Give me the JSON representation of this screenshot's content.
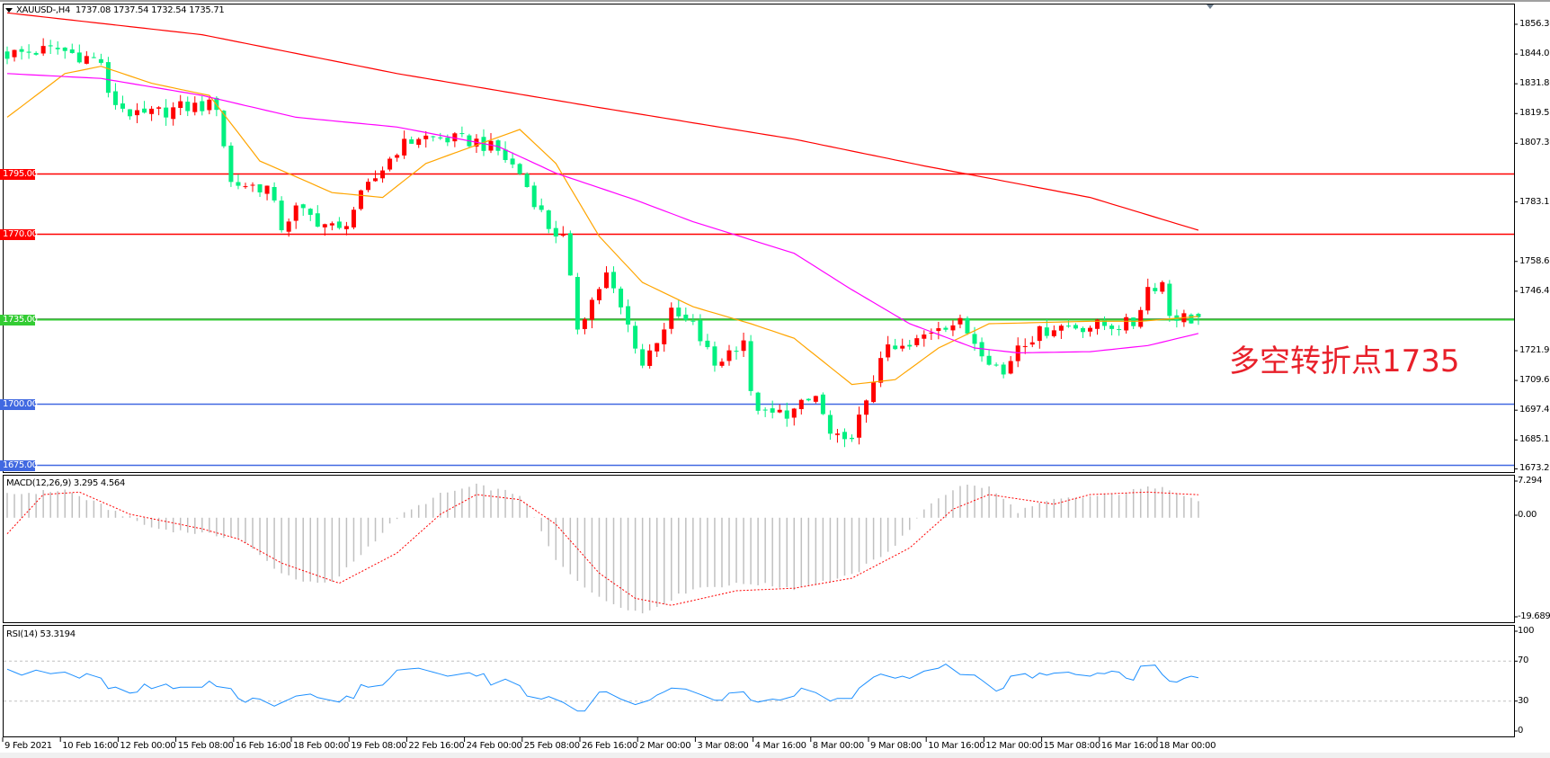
{
  "header": {
    "symbol": "XAUUSD-,H4",
    "ohlc": "1737.08 1737.54 1732.54 1735.71",
    "macd_label": "MACD(12,26,9) 3.295 4.564",
    "rsi_label": "RSI(14) 53.3194"
  },
  "annotation": "多空转折点1735",
  "chart_data": [
    {
      "type": "candlestick",
      "symbol": "XAUUSD-",
      "timeframe": "H4",
      "last_bar": {
        "open": 1737.08,
        "high": 1737.54,
        "low": 1732.54,
        "close": 1735.71
      },
      "bull_color": "#ff0000",
      "bear_color": "#00f080",
      "bar_count": 166,
      "close_path": [
        [
          0,
          1844
        ],
        [
          7,
          1846
        ],
        [
          13,
          1841
        ],
        [
          14,
          1826
        ],
        [
          18,
          1818
        ],
        [
          24,
          1822
        ],
        [
          29,
          1823
        ],
        [
          31,
          1791
        ],
        [
          36,
          1789
        ],
        [
          38,
          1773
        ],
        [
          40,
          1780
        ],
        [
          46,
          1771
        ],
        [
          49,
          1785
        ],
        [
          54,
          1805
        ],
        [
          57,
          1810
        ],
        [
          65,
          1808
        ],
        [
          68,
          1804
        ],
        [
          71,
          1795
        ],
        [
          75,
          1773
        ],
        [
          77,
          1768
        ],
        [
          79,
          1732
        ],
        [
          82,
          1748
        ],
        [
          83,
          1753
        ],
        [
          87,
          1725
        ],
        [
          88,
          1716
        ],
        [
          90,
          1727
        ],
        [
          92,
          1737
        ],
        [
          95,
          1732
        ],
        [
          98,
          1716
        ],
        [
          102,
          1727
        ],
        [
          103,
          1703
        ],
        [
          105,
          1695
        ],
        [
          109,
          1697
        ],
        [
          112,
          1703
        ],
        [
          114,
          1687
        ],
        [
          116,
          1683
        ],
        [
          119,
          1699
        ],
        [
          121,
          1721
        ],
        [
          125,
          1723
        ],
        [
          129,
          1733
        ],
        [
          132,
          1733
        ],
        [
          136,
          1719
        ],
        [
          138,
          1712
        ],
        [
          140,
          1725
        ],
        [
          145,
          1732
        ],
        [
          150,
          1732
        ],
        [
          156,
          1733
        ],
        [
          158,
          1748
        ],
        [
          160,
          1750
        ],
        [
          161,
          1737
        ],
        [
          164,
          1735
        ],
        [
          165,
          1735.71
        ]
      ],
      "moving_averages": [
        {
          "color": "#ff0000",
          "points": [
            [
              0,
              1861
            ],
            [
              27,
              1852
            ],
            [
              54,
              1836
            ],
            [
              82,
              1822
            ],
            [
              109,
              1809
            ],
            [
              127,
              1798
            ],
            [
              150,
              1785
            ],
            [
              165,
              1771.5
            ]
          ]
        },
        {
          "color": "#ffa500",
          "points": [
            [
              0,
              1818
            ],
            [
              8,
              1836
            ],
            [
              13,
              1839
            ],
            [
              20,
              1832
            ],
            [
              28,
              1827
            ],
            [
              35,
              1800
            ],
            [
              45,
              1787
            ],
            [
              52,
              1785
            ],
            [
              58,
              1799
            ],
            [
              71,
              1813
            ],
            [
              76,
              1799
            ],
            [
              82,
              1769
            ],
            [
              88,
              1750
            ],
            [
              95,
              1740
            ],
            [
              103,
              1733
            ],
            [
              109,
              1727
            ],
            [
              117,
              1708
            ],
            [
              123,
              1710
            ],
            [
              129,
              1723
            ],
            [
              136,
              1733
            ],
            [
              150,
              1734
            ],
            [
              157,
              1734
            ],
            [
              165,
              1736
            ]
          ]
        },
        {
          "color": "#ff00ff",
          "points": [
            [
              0,
              1836
            ],
            [
              13,
              1834
            ],
            [
              27,
              1827
            ],
            [
              40,
              1818
            ],
            [
              54,
              1814
            ],
            [
              68,
              1806
            ],
            [
              76,
              1795
            ],
            [
              87,
              1784
            ],
            [
              95,
              1775
            ],
            [
              109,
              1762
            ],
            [
              117,
              1747
            ],
            [
              125,
              1733
            ],
            [
              134,
              1723
            ],
            [
              140,
              1721
            ],
            [
              150,
              1721.5
            ],
            [
              158,
              1724
            ],
            [
              165,
              1729
            ]
          ]
        }
      ],
      "levels": [
        {
          "value": 1795,
          "label": "1795.00",
          "color": "#ff0000"
        },
        {
          "value": 1770,
          "label": "1770.00",
          "color": "#ff0000"
        },
        {
          "value": 1735,
          "label": "1735.00",
          "color": "#33cc33"
        },
        {
          "value": 1700,
          "label": "1700.00",
          "color": "#4169e1"
        },
        {
          "value": 1675,
          "label": "1675.00",
          "color": "#4169e1"
        }
      ],
      "y_ticks": [
        1856.3,
        1844.05,
        1831.8,
        1819.55,
        1807.3,
        1783.15,
        1758.65,
        1746.4,
        1721.9,
        1709.65,
        1697.4,
        1685.15,
        1673.25
      ],
      "y_tick_labels": [
        "1856.30",
        "1844.05",
        "1831.80",
        "1819.55",
        "1807.30",
        "1783.15",
        "1758.65",
        "1746.40",
        "1721.90",
        "1709.65",
        "1697.40",
        "1685.15",
        "1673.25"
      ],
      "x_tick_labels": [
        "9 Feb 2021",
        "10 Feb 16:00",
        "12 Feb 00:00",
        "15 Feb 08:00",
        "16 Feb 16:00",
        "18 Feb 00:00",
        "19 Feb 08:00",
        "22 Feb 16:00",
        "24 Feb 00:00",
        "25 Feb 08:00",
        "26 Feb 16:00",
        "2 Mar 00:00",
        "3 Mar 08:00",
        "4 Mar 16:00",
        "8 Mar 00:00",
        "9 Mar 08:00",
        "10 Mar 16:00",
        "12 Mar 00:00",
        "15 Mar 08:00",
        "16 Mar 16:00",
        "18 Mar 00:00"
      ]
    },
    {
      "type": "bar+line",
      "indicator": "MACD(12,26,9)",
      "main": 3.295,
      "signal": 4.564,
      "histogram_color": "#c0c0c0",
      "signal_color": "#ff0000",
      "histogram_path": [
        [
          0,
          4.6
        ],
        [
          8,
          5.5
        ],
        [
          17,
          0
        ],
        [
          20,
          -2
        ],
        [
          32,
          -4
        ],
        [
          38,
          -11
        ],
        [
          42,
          -13
        ],
        [
          45,
          -13
        ],
        [
          54,
          0
        ],
        [
          60,
          4.6
        ],
        [
          65,
          6.4
        ],
        [
          71,
          4.6
        ],
        [
          73,
          0
        ],
        [
          76,
          -8.6
        ],
        [
          82,
          -16
        ],
        [
          88,
          -19
        ],
        [
          95,
          -14
        ],
        [
          103,
          -13
        ],
        [
          109,
          -14
        ],
        [
          117,
          -11.5
        ],
        [
          123,
          -5.5
        ],
        [
          128,
          3
        ],
        [
          132,
          6.5
        ],
        [
          136,
          6
        ],
        [
          140,
          1.3
        ],
        [
          145,
          3.5
        ],
        [
          153,
          4.6
        ],
        [
          160,
          6.4
        ],
        [
          165,
          3.295
        ]
      ],
      "signal_path": [
        [
          0,
          -3.2
        ],
        [
          5,
          4.6
        ],
        [
          10,
          5.1
        ],
        [
          17,
          0.7
        ],
        [
          27,
          -2.2
        ],
        [
          32,
          -4.2
        ],
        [
          38,
          -9
        ],
        [
          46,
          -13
        ],
        [
          54,
          -7
        ],
        [
          60,
          0.7
        ],
        [
          65,
          4.6
        ],
        [
          71,
          3.6
        ],
        [
          76,
          -1.3
        ],
        [
          82,
          -11
        ],
        [
          87,
          -16
        ],
        [
          92,
          -17.4
        ],
        [
          101,
          -14.5
        ],
        [
          109,
          -14
        ],
        [
          117,
          -12
        ],
        [
          125,
          -6
        ],
        [
          131,
          1.7
        ],
        [
          136,
          4.6
        ],
        [
          145,
          2.7
        ],
        [
          150,
          4.6
        ],
        [
          158,
          5.1
        ],
        [
          165,
          4.564
        ]
      ],
      "y_tick_labels": [
        "7.294",
        "0.00",
        "-19.689"
      ],
      "y_ticks": [
        7.294,
        0,
        -19.689
      ]
    },
    {
      "type": "line",
      "indicator": "RSI(14)",
      "value": 53.3194,
      "color": "#1e90ff",
      "ylim": [
        0,
        100
      ],
      "levels": [
        70,
        30
      ],
      "y_tick_labels": [
        "100",
        "70",
        "30",
        "0"
      ],
      "y_ticks": [
        100,
        70,
        30,
        0
      ],
      "path": [
        [
          0,
          62
        ],
        [
          2,
          56
        ],
        [
          4,
          61
        ],
        [
          6,
          57.5
        ],
        [
          8,
          59
        ],
        [
          10,
          53
        ],
        [
          11,
          57.5
        ],
        [
          13,
          53
        ],
        [
          14,
          42.5
        ],
        [
          15,
          44
        ],
        [
          17,
          38
        ],
        [
          18,
          39
        ],
        [
          19,
          47
        ],
        [
          20,
          42.5
        ],
        [
          22,
          47
        ],
        [
          23,
          42.5
        ],
        [
          24,
          44
        ],
        [
          27,
          44
        ],
        [
          28,
          50
        ],
        [
          29,
          44.7
        ],
        [
          31,
          42.5
        ],
        [
          32,
          32.7
        ],
        [
          33,
          28.7
        ],
        [
          34,
          33
        ],
        [
          35,
          32
        ],
        [
          37,
          25
        ],
        [
          40,
          35
        ],
        [
          42,
          37
        ],
        [
          43,
          33.5
        ],
        [
          46,
          29
        ],
        [
          47,
          35
        ],
        [
          48,
          32.7
        ],
        [
          49,
          46.5
        ],
        [
          50,
          44
        ],
        [
          52,
          46
        ],
        [
          53,
          53
        ],
        [
          54,
          61
        ],
        [
          57,
          63
        ],
        [
          59,
          59
        ],
        [
          61,
          55
        ],
        [
          64,
          58.5
        ],
        [
          65,
          55
        ],
        [
          66,
          57.5
        ],
        [
          67,
          46
        ],
        [
          69,
          52
        ],
        [
          71,
          45.5
        ],
        [
          72,
          35
        ],
        [
          74,
          32
        ],
        [
          75,
          34.5
        ],
        [
          77,
          28.7
        ],
        [
          79,
          20
        ],
        [
          80,
          20
        ],
        [
          82,
          39
        ],
        [
          83,
          39.3
        ],
        [
          85,
          32
        ],
        [
          87,
          26.5
        ],
        [
          89,
          31
        ],
        [
          90,
          36
        ],
        [
          91,
          39.3
        ],
        [
          92,
          43
        ],
        [
          94,
          42
        ],
        [
          96,
          36.7
        ],
        [
          98,
          30.8
        ],
        [
          99,
          30.8
        ],
        [
          100,
          38
        ],
        [
          102,
          39.3
        ],
        [
          103,
          31
        ],
        [
          104,
          29
        ],
        [
          106,
          32
        ],
        [
          107,
          31
        ],
        [
          109,
          35
        ],
        [
          110,
          43
        ],
        [
          112,
          38.5
        ],
        [
          114,
          30
        ],
        [
          115,
          32.7
        ],
        [
          117,
          32.7
        ],
        [
          118,
          43
        ],
        [
          120,
          54
        ],
        [
          121,
          57
        ],
        [
          123,
          53
        ],
        [
          124,
          55
        ],
        [
          125,
          52.7
        ],
        [
          127,
          60
        ],
        [
          129,
          63
        ],
        [
          130,
          67
        ],
        [
          132,
          56.7
        ],
        [
          134,
          56
        ],
        [
          135,
          51
        ],
        [
          137,
          40
        ],
        [
          138,
          43
        ],
        [
          139,
          55
        ],
        [
          141,
          57.5
        ],
        [
          142,
          53
        ],
        [
          143,
          58
        ],
        [
          144,
          56
        ],
        [
          145,
          58
        ],
        [
          147,
          59
        ],
        [
          148,
          56.7
        ],
        [
          150,
          55
        ],
        [
          151,
          58
        ],
        [
          152,
          57.5
        ],
        [
          153,
          60
        ],
        [
          154,
          59
        ],
        [
          155,
          53
        ],
        [
          156,
          51
        ],
        [
          157,
          65
        ],
        [
          159,
          66
        ],
        [
          160,
          56.7
        ],
        [
          161,
          50
        ],
        [
          162,
          49
        ],
        [
          163,
          52.7
        ],
        [
          164,
          55
        ],
        [
          165,
          53.3
        ]
      ]
    }
  ]
}
